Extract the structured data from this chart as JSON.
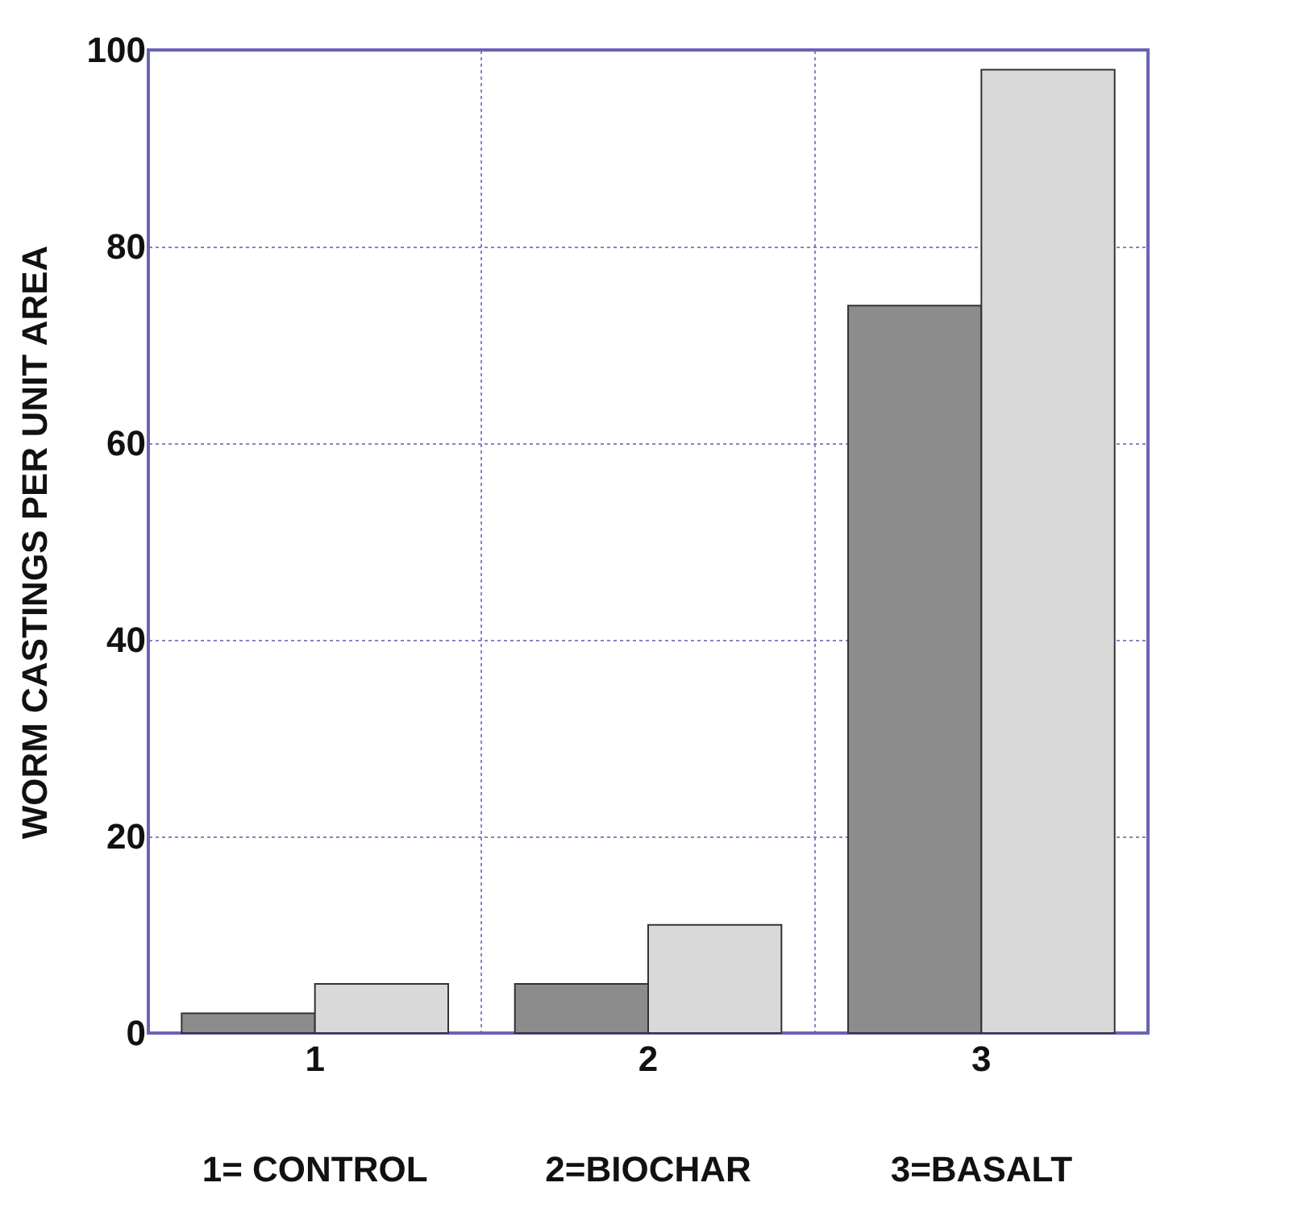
{
  "chart_data": {
    "type": "bar",
    "ylabel": "WORM CASTINGS PER UNIT AREA",
    "categories": [
      "1",
      "2",
      "3"
    ],
    "series": [
      {
        "color": "#8c8c8c",
        "values": [
          2,
          5,
          74
        ]
      },
      {
        "color": "#d9d9d9",
        "values": [
          5,
          11,
          98
        ]
      }
    ],
    "ylim": [
      0,
      100
    ],
    "yticks": [
      0,
      20,
      40,
      60,
      80,
      100
    ],
    "grid": true,
    "legend": false,
    "annotations": [
      "1= CONTROL",
      "2=BIOCHAR",
      "3=BASALT"
    ]
  }
}
